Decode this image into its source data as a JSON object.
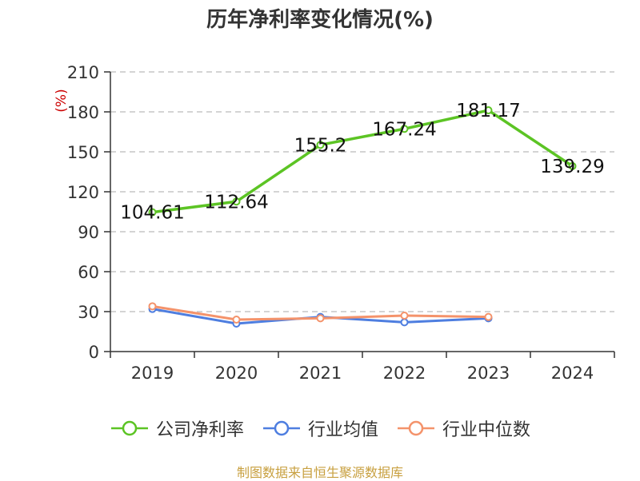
{
  "title": "历年净利率变化情况(%)",
  "source": "制图数据来自恒生聚源数据库",
  "colors": {
    "company": "#5cc424",
    "industry_avg": "#4e7ee0",
    "industry_median": "#f4936b",
    "unit_label": "#cc0000",
    "source": "#c8a040",
    "grid": "#bbbbbb",
    "axis": "#333333"
  },
  "chart_data": {
    "type": "line",
    "ylabel": "(%)",
    "xlabel": "",
    "ylim": [
      0,
      210
    ],
    "yticks": [
      0,
      30,
      60,
      90,
      120,
      150,
      180,
      210
    ],
    "categories": [
      "2019",
      "2020",
      "2021",
      "2022",
      "2023",
      "2024"
    ],
    "grid": true,
    "legend_position": "bottom",
    "series": [
      {
        "name": "公司净利率",
        "values": [
          104.61,
          112.64,
          155.2,
          167.24,
          181.17,
          139.29
        ],
        "labels": [
          "104.61",
          "112.64",
          "155.2",
          "167.24",
          "181.17",
          "139.29"
        ]
      },
      {
        "name": "行业均值",
        "values": [
          32,
          21,
          26,
          22,
          25,
          null
        ]
      },
      {
        "name": "行业中位数",
        "values": [
          34,
          24,
          25,
          27,
          26,
          null
        ]
      }
    ]
  }
}
